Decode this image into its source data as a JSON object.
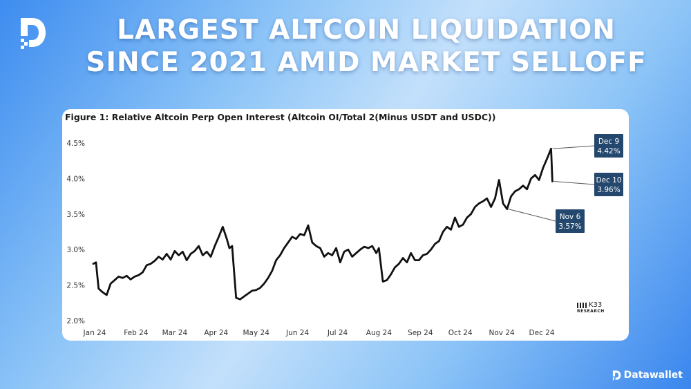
{
  "header": {
    "line1": "LARGEST ALTCOIN LIQUIDATION",
    "line2": "SINCE 2021 AMID MARKET SELLOFF"
  },
  "brand": {
    "name": "Datawallet",
    "logo_icon": "datawallet-logo-icon"
  },
  "figure": {
    "title": "Figure 1: Relative Altcoin Perp Open Interest (Altcoin OI/Total 2(Minus USDT and USDC))"
  },
  "source_logo": {
    "name": "K33",
    "sub": "RESEARCH"
  },
  "colors": {
    "line": "#111111",
    "annotation_bg": "#24476d",
    "annotation_text": "#ffffff",
    "bg_start": "#3d8cf0",
    "bg_mid": "#c3e0fb"
  },
  "chart_data": {
    "type": "line",
    "title": "Figure 1: Relative Altcoin Perp Open Interest (Altcoin OI/Total 2(Minus USDT and USDC))",
    "xlabel": "",
    "ylabel": "",
    "grid": false,
    "x_tick_labels": [
      "Jan 24",
      "Feb 24",
      "Mar 24",
      "Apr 24",
      "May 24",
      "Jun 24",
      "Jul 24",
      "Aug 24",
      "Sep 24",
      "Oct 24",
      "Nov 24",
      "Dec 24"
    ],
    "y_tick_labels": [
      "2.0%",
      "2.5%",
      "3.0%",
      "3.5%",
      "4.0%",
      "4.5%"
    ],
    "ylim": [
      2.0,
      4.6
    ],
    "xlim": [
      "2024-01-01",
      "2024-12-31"
    ],
    "series": [
      {
        "x": [
          "2024-01-01",
          "2024-01-03",
          "2024-01-05",
          "2024-01-08",
          "2024-01-11",
          "2024-01-14",
          "2024-01-17",
          "2024-01-20",
          "2024-01-23",
          "2024-01-26",
          "2024-01-29",
          "2024-02-01",
          "2024-02-04",
          "2024-02-07",
          "2024-02-10",
          "2024-02-13",
          "2024-02-16",
          "2024-02-19",
          "2024-02-22",
          "2024-02-25",
          "2024-02-28",
          "2024-03-02",
          "2024-03-05",
          "2024-03-08",
          "2024-03-11",
          "2024-03-14",
          "2024-03-17",
          "2024-03-20",
          "2024-03-23",
          "2024-03-26",
          "2024-03-29",
          "2024-04-01",
          "2024-04-04",
          "2024-04-07",
          "2024-04-10",
          "2024-04-12",
          "2024-04-14",
          "2024-04-17",
          "2024-04-20",
          "2024-04-23",
          "2024-04-26",
          "2024-04-29",
          "2024-05-02",
          "2024-05-05",
          "2024-05-08",
          "2024-05-11",
          "2024-05-14",
          "2024-05-17",
          "2024-05-20",
          "2024-05-23",
          "2024-05-26",
          "2024-05-29",
          "2024-06-01",
          "2024-06-04",
          "2024-06-07",
          "2024-06-10",
          "2024-06-13",
          "2024-06-16",
          "2024-06-19",
          "2024-06-22",
          "2024-06-25",
          "2024-06-28",
          "2024-07-01",
          "2024-07-04",
          "2024-07-07",
          "2024-07-10",
          "2024-07-13",
          "2024-07-16",
          "2024-07-19",
          "2024-07-22",
          "2024-07-25",
          "2024-07-28",
          "2024-07-31",
          "2024-08-02",
          "2024-08-05",
          "2024-08-08",
          "2024-08-11",
          "2024-08-14",
          "2024-08-17",
          "2024-08-20",
          "2024-08-23",
          "2024-08-26",
          "2024-08-29",
          "2024-09-01",
          "2024-09-04",
          "2024-09-07",
          "2024-09-10",
          "2024-09-13",
          "2024-09-16",
          "2024-09-19",
          "2024-09-22",
          "2024-09-25",
          "2024-09-28",
          "2024-10-01",
          "2024-10-04",
          "2024-10-07",
          "2024-10-10",
          "2024-10-13",
          "2024-10-16",
          "2024-10-19",
          "2024-10-22",
          "2024-10-25",
          "2024-10-28",
          "2024-10-31",
          "2024-11-03",
          "2024-11-06",
          "2024-11-09",
          "2024-11-12",
          "2024-11-15",
          "2024-11-18",
          "2024-11-21",
          "2024-11-24",
          "2024-11-27",
          "2024-11-30",
          "2024-12-03",
          "2024-12-06",
          "2024-12-09",
          "2024-12-10"
        ],
        "y": [
          2.8,
          2.82,
          2.45,
          2.4,
          2.36,
          2.52,
          2.57,
          2.62,
          2.6,
          2.63,
          2.58,
          2.62,
          2.64,
          2.68,
          2.78,
          2.8,
          2.84,
          2.9,
          2.86,
          2.94,
          2.86,
          2.98,
          2.92,
          2.97,
          2.85,
          2.94,
          2.98,
          3.05,
          2.92,
          2.97,
          2.9,
          3.05,
          3.18,
          3.32,
          3.15,
          3.02,
          3.05,
          2.32,
          2.3,
          2.34,
          2.38,
          2.42,
          2.43,
          2.46,
          2.52,
          2.6,
          2.7,
          2.85,
          2.92,
          3.02,
          3.1,
          3.18,
          3.15,
          3.22,
          3.2,
          3.34,
          3.1,
          3.05,
          3.02,
          2.9,
          2.95,
          2.92,
          3.02,
          2.82,
          2.97,
          3.0,
          2.9,
          2.95,
          3.0,
          3.04,
          3.02,
          3.05,
          2.95,
          3.02,
          2.55,
          2.57,
          2.65,
          2.75,
          2.8,
          2.88,
          2.82,
          2.95,
          2.85,
          2.85,
          2.92,
          2.94,
          3.0,
          3.08,
          3.12,
          3.25,
          3.32,
          3.28,
          3.45,
          3.32,
          3.35,
          3.45,
          3.5,
          3.6,
          3.65,
          3.68,
          3.72,
          3.6,
          3.72,
          3.98,
          3.65,
          3.57,
          3.75,
          3.82,
          3.85,
          3.9,
          3.85,
          4.0,
          4.05,
          3.98,
          4.15,
          4.28,
          4.42,
          3.96
        ]
      }
    ],
    "annotations": [
      {
        "label": "Dec 9",
        "value": "4.42%",
        "x": "2024-12-09",
        "y": 4.42
      },
      {
        "label": "Dec 10",
        "value": "3.96%",
        "x": "2024-12-10",
        "y": 3.96
      },
      {
        "label": "Nov 6",
        "value": "3.57%",
        "x": "2024-11-06",
        "y": 3.57
      }
    ]
  }
}
